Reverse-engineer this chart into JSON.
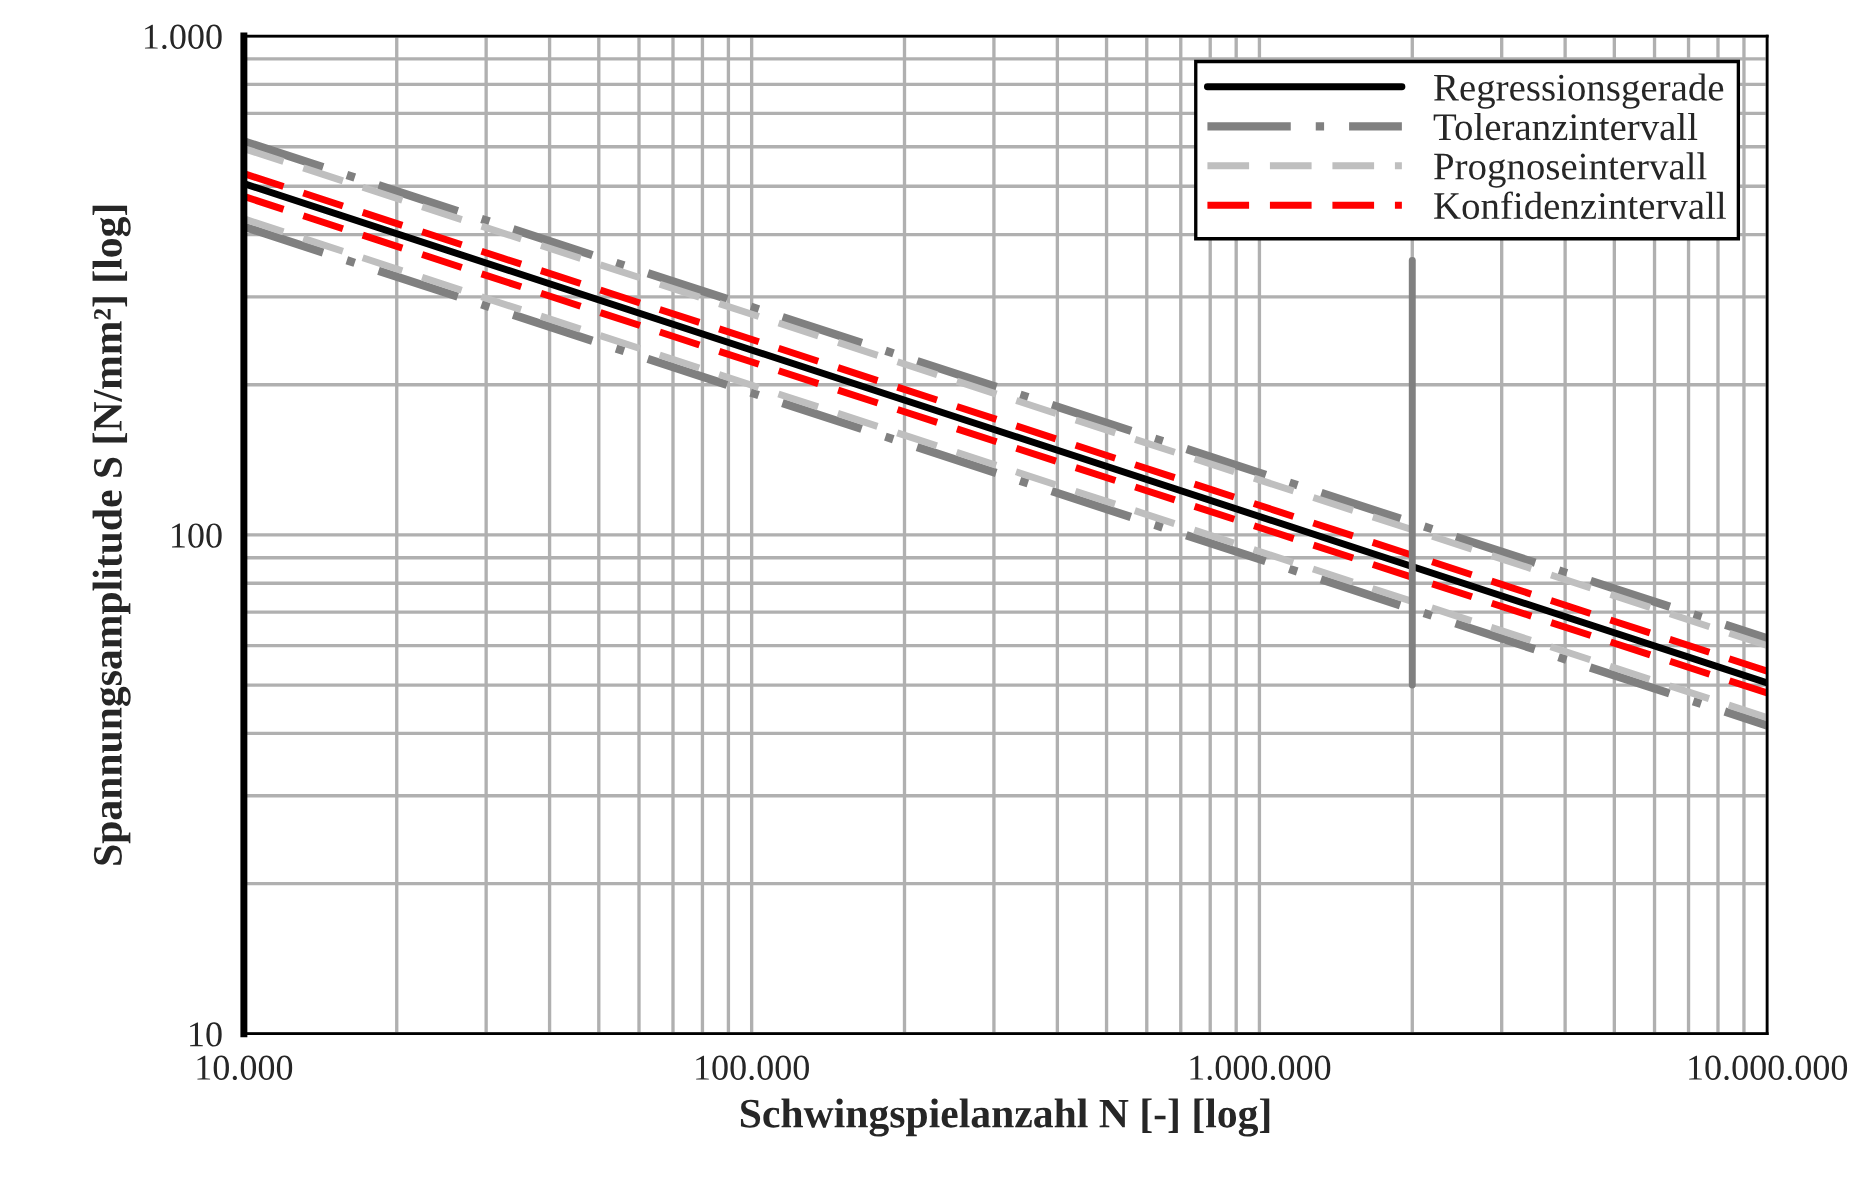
{
  "chart_data": {
    "type": "line",
    "xlabel": "Schwingspielanzahl N [-] [log]",
    "ylabel": "Spannungsamplitude S [N/mm²] [log]",
    "log": "xy",
    "xlim": [
      10000,
      10000000
    ],
    "ylim": [
      10,
      1000
    ],
    "xticks": [
      {
        "value": 10000,
        "label": "10.000"
      },
      {
        "value": 100000,
        "label": "100.000"
      },
      {
        "value": 1000000,
        "label": "1.000.000"
      },
      {
        "value": 10000000,
        "label": "10.000.000"
      }
    ],
    "yticks": [
      10,
      100,
      {
        "value": 1000,
        "label": "1.000"
      }
    ],
    "grid": true,
    "legend": "top right",
    "marker": "none",
    "series": [
      {
        "name": "Regressionsgerade",
        "color": "#000000",
        "line_style": "solid",
        "x": [
          10000,
          10000000
        ],
        "values": [
          506,
          50.5
        ]
      },
      {
        "name": "Toleranzintervall",
        "color": "#808080",
        "line_style": "dashdot",
        "x": [
          10000,
          10000000
        ],
        "values": [
          615,
          62
        ]
      },
      {
        "color": "#808080",
        "line_style": "dashdot",
        "x": [
          10000,
          10000000
        ],
        "values": [
          415,
          41.5
        ]
      },
      {
        "name": "Prognoseintervall",
        "color": "#bfbfbf",
        "line_style": "dashed",
        "x": [
          10000,
          10000000
        ],
        "values": [
          595,
          60
        ]
      },
      {
        "color": "#bfbfbf",
        "line_style": "dashed",
        "x": [
          10000,
          10000000
        ],
        "values": [
          430,
          43
        ]
      },
      {
        "name": "Konfidenzintervall",
        "color": "#ff0000",
        "line_style": "dashed",
        "x": [
          10000,
          10000000
        ],
        "values": [
          530,
          53.3
        ]
      },
      {
        "color": "#ff0000",
        "line_style": "dashed",
        "x": [
          10000,
          10000000
        ],
        "values": [
          477,
          48.2
        ]
      },
      {
        "color": "#808080",
        "line_style": "solid",
        "x": [
          2000000,
          2000000
        ],
        "values": [
          50,
          355
        ]
      }
    ]
  }
}
